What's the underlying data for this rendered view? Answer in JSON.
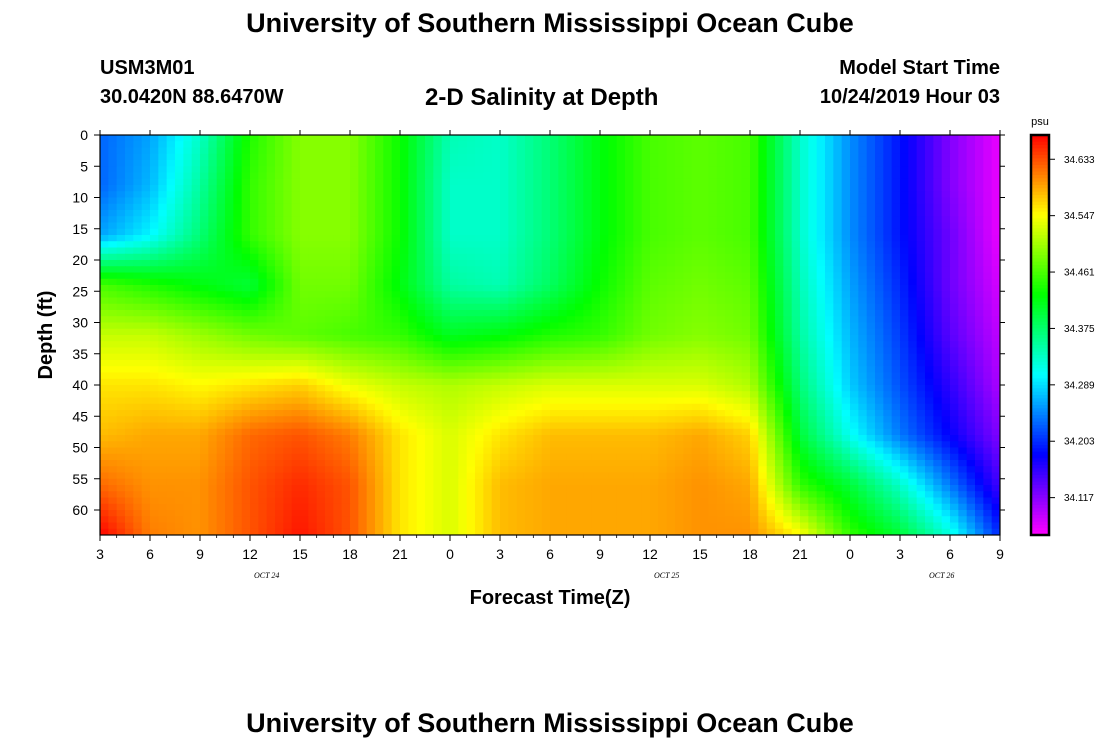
{
  "header": {
    "title": "University of Southern Mississippi Ocean Cube",
    "station_id": "USM3M01",
    "station_location": "30.0420N 88.6470W",
    "plot_title": "2-D Salinity at Depth",
    "start_label": "Model Start Time",
    "start_value": "10/24/2019 Hour 03"
  },
  "footer": {
    "title": "University of Southern Mississippi Ocean Cube"
  },
  "chart_data": {
    "type": "heatmap",
    "title": "2-D Salinity at Depth",
    "xlabel": "Forecast Time(Z)",
    "ylabel": "Depth (ft)",
    "x_hours_range": [
      3,
      57
    ],
    "x_tick_labels": [
      "3",
      "6",
      "9",
      "12",
      "15",
      "18",
      "21",
      "0",
      "3",
      "6",
      "9",
      "12",
      "15",
      "18",
      "21",
      "0",
      "3",
      "6",
      "9"
    ],
    "date_labels": [
      {
        "label": "OCT  24",
        "hour": 13
      },
      {
        "label": "OCT  25",
        "hour": 37
      },
      {
        "label": "OCT  26",
        "hour": 53.5
      }
    ],
    "y_ticks": [
      0,
      5,
      10,
      15,
      20,
      25,
      30,
      35,
      40,
      45,
      50,
      55,
      60
    ],
    "ylim": [
      0,
      64
    ],
    "colorbar": {
      "unit": "psu",
      "min": 34.06,
      "max": 34.67,
      "tick_values": [
        34.117,
        34.203,
        34.289,
        34.375,
        34.461,
        34.547,
        34.633
      ],
      "tick_labels": [
        "34.117",
        "34.203",
        "34.289",
        "34.375",
        "34.461",
        "34.547",
        "34.633"
      ]
    },
    "depths_ft": [
      0,
      8,
      16,
      24,
      32,
      40,
      48,
      56,
      64
    ],
    "time_hours": [
      3,
      6,
      9,
      12,
      15,
      18,
      21,
      24,
      27,
      30,
      33,
      36,
      39,
      42,
      45,
      48,
      51,
      54,
      57
    ],
    "salinity_psu": [
      [
        34.23,
        34.26,
        34.33,
        34.44,
        34.49,
        34.49,
        34.43,
        34.34,
        34.33,
        34.37,
        34.42,
        34.46,
        34.47,
        34.46,
        34.33,
        34.25,
        34.19,
        34.12,
        34.07
      ],
      [
        34.23,
        34.27,
        34.35,
        34.45,
        34.49,
        34.49,
        34.43,
        34.33,
        34.33,
        34.37,
        34.42,
        34.46,
        34.47,
        34.46,
        34.33,
        34.25,
        34.19,
        34.12,
        34.07
      ],
      [
        34.26,
        34.3,
        34.37,
        34.45,
        34.49,
        34.49,
        34.43,
        34.33,
        34.33,
        34.37,
        34.42,
        34.46,
        34.47,
        34.46,
        34.33,
        34.25,
        34.19,
        34.13,
        34.07
      ],
      [
        34.46,
        34.44,
        34.42,
        34.4,
        34.48,
        34.48,
        34.42,
        34.35,
        34.34,
        34.38,
        34.43,
        34.47,
        34.48,
        34.47,
        34.34,
        34.26,
        34.2,
        34.13,
        34.08
      ],
      [
        34.52,
        34.52,
        34.5,
        34.48,
        34.47,
        34.46,
        34.45,
        34.41,
        34.42,
        34.44,
        34.45,
        34.48,
        34.49,
        34.48,
        34.35,
        34.27,
        34.21,
        34.14,
        34.09
      ],
      [
        34.56,
        34.56,
        34.55,
        34.56,
        34.57,
        34.54,
        34.52,
        34.51,
        34.52,
        34.53,
        34.53,
        34.53,
        34.53,
        34.51,
        34.37,
        34.28,
        34.22,
        34.16,
        34.1
      ],
      [
        34.58,
        34.59,
        34.59,
        34.62,
        34.63,
        34.61,
        34.56,
        34.53,
        34.56,
        34.58,
        34.58,
        34.58,
        34.59,
        34.57,
        34.4,
        34.31,
        34.24,
        34.18,
        34.12
      ],
      [
        34.62,
        34.6,
        34.6,
        34.63,
        34.65,
        34.63,
        34.56,
        34.53,
        34.58,
        34.59,
        34.59,
        34.59,
        34.6,
        34.59,
        34.45,
        34.4,
        34.33,
        34.24,
        34.15
      ],
      [
        34.67,
        34.61,
        34.6,
        34.63,
        34.66,
        34.63,
        34.56,
        34.53,
        34.58,
        34.59,
        34.59,
        34.59,
        34.6,
        34.6,
        34.55,
        34.45,
        34.4,
        34.32,
        34.2
      ]
    ]
  }
}
